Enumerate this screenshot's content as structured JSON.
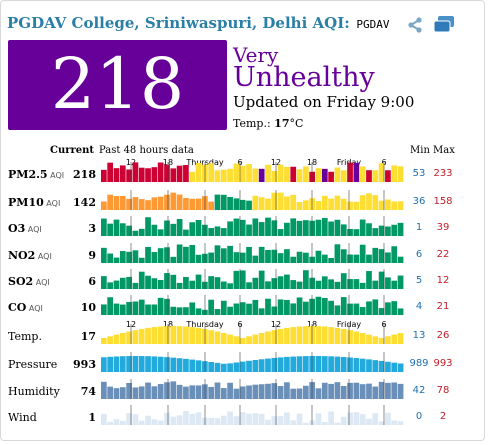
{
  "header": {
    "title_city": "PGDAV College, Sriniwaspuri, Delhi AQI",
    "title_sep": ":",
    "title_code": " PGDAV",
    "share_icon": "share-icon",
    "embed_icon": "embed-icon"
  },
  "summary": {
    "aqi": "218",
    "level_line1": "Very",
    "level_line2": "Unhealthy",
    "updated": "Updated on Friday 9:00",
    "temp_label": "Temp.:",
    "temp_value": "17",
    "temp_unit": "°C",
    "colors": {
      "aqi_box": "#660099",
      "level_text": "#660099"
    }
  },
  "table": {
    "col_current": "Current",
    "col_history": "Past 48 hours data",
    "col_min": "Min",
    "col_max": "Max",
    "axis_top": [
      "12",
      "18",
      "Thursday",
      "6",
      "12",
      "18",
      "Friday",
      "6"
    ],
    "axis_mid": [
      "12",
      "18",
      "Thursday",
      "6",
      "12",
      "18",
      "Friday",
      "6"
    ],
    "rows": [
      {
        "name": "PM2.5",
        "unit": "AQI",
        "current": "218",
        "min": "53",
        "max": "233"
      },
      {
        "name": "PM10",
        "unit": "AQI",
        "current": "142",
        "min": "36",
        "max": "158"
      },
      {
        "name": "O3",
        "unit": "AQI",
        "current": "3",
        "min": "1",
        "max": "39"
      },
      {
        "name": "NO2",
        "unit": "AQI",
        "current": "9",
        "min": "6",
        "max": "22"
      },
      {
        "name": "SO2",
        "unit": "AQI",
        "current": "6",
        "min": "5",
        "max": "12"
      },
      {
        "name": "CO",
        "unit": "AQI",
        "current": "10",
        "min": "4",
        "max": "21"
      },
      {
        "name": "Temp.",
        "unit": "",
        "current": "17",
        "min": "13",
        "max": "26"
      },
      {
        "name": "Pressure",
        "unit": "",
        "current": "993",
        "min": "989",
        "max": "993"
      },
      {
        "name": "Humidity",
        "unit": "",
        "current": "74",
        "min": "42",
        "max": "78"
      },
      {
        "name": "Wind",
        "unit": "",
        "current": "1",
        "min": "0",
        "max": "2"
      }
    ]
  }
}
